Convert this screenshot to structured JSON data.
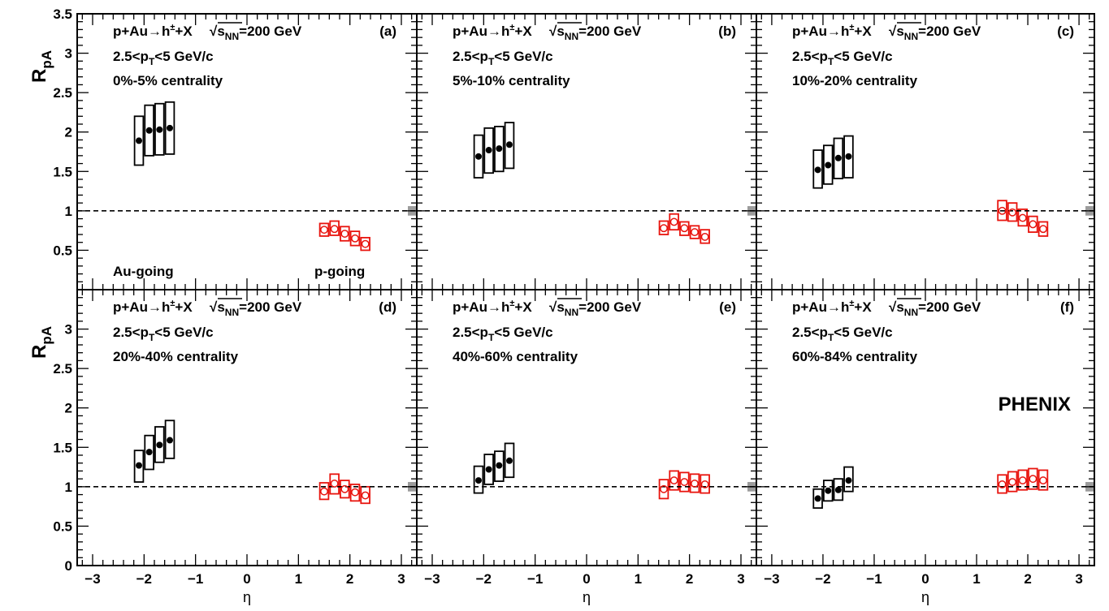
{
  "figure": {
    "ylabel": {
      "main": "R",
      "sub": "pA"
    },
    "xlabel": "η",
    "brand": "PHENIX",
    "reference_line_y": 1.0
  },
  "chart_data": [
    {
      "type": "scatter",
      "panel_label": "(a)",
      "process": "p+Au→h±+X",
      "energy": "√sNN=200 GeV",
      "pt_range": "2.5<pT<5 GeV/c",
      "centrality": "0%-5% centrality",
      "side_labels": {
        "left": "Au-going",
        "right": "p-going"
      },
      "xlim": [
        -3.3,
        3.3
      ],
      "ylim": [
        0,
        3.5
      ],
      "yticks": [
        0.5,
        1,
        1.5,
        2,
        2.5,
        3,
        3.5
      ],
      "xticks": [
        -3,
        -2,
        -1,
        0,
        1,
        2,
        3
      ],
      "norm_uncertainty": [
        0.94,
        1.06
      ],
      "series": [
        {
          "marker": "filled-circle",
          "color": "#000000",
          "x": [
            -2.1,
            -1.9,
            -1.7,
            -1.5
          ],
          "y": [
            1.89,
            2.02,
            2.03,
            2.05
          ],
          "sys_low": [
            1.58,
            1.7,
            1.71,
            1.72
          ],
          "sys_high": [
            2.2,
            2.34,
            2.36,
            2.38
          ]
        },
        {
          "marker": "open-circle",
          "color": "#e8140e",
          "x": [
            1.5,
            1.7,
            1.9,
            2.1,
            2.3
          ],
          "y": [
            0.76,
            0.77,
            0.71,
            0.65,
            0.58
          ],
          "sys_low": [
            0.68,
            0.69,
            0.62,
            0.56,
            0.5
          ],
          "sys_high": [
            0.84,
            0.87,
            0.8,
            0.74,
            0.66
          ]
        }
      ]
    },
    {
      "type": "scatter",
      "panel_label": "(b)",
      "process": "p+Au→h±+X",
      "energy": "√sNN=200 GeV",
      "pt_range": "2.5<pT<5 GeV/c",
      "centrality": "5%-10% centrality",
      "xlim": [
        -3.3,
        3.3
      ],
      "ylim": [
        0,
        3.5
      ],
      "yticks": [],
      "xticks": [
        -3,
        -2,
        -1,
        0,
        1,
        2,
        3
      ],
      "norm_uncertainty": [
        0.94,
        1.06
      ],
      "series": [
        {
          "marker": "filled-circle",
          "color": "#000000",
          "x": [
            -2.1,
            -1.9,
            -1.7,
            -1.5
          ],
          "y": [
            1.69,
            1.77,
            1.79,
            1.84
          ],
          "sys_low": [
            1.42,
            1.48,
            1.5,
            1.54
          ],
          "sys_high": [
            1.96,
            2.05,
            2.07,
            2.12
          ]
        },
        {
          "marker": "open-circle",
          "color": "#e8140e",
          "x": [
            1.5,
            1.7,
            1.9,
            2.1,
            2.3
          ],
          "y": [
            0.78,
            0.86,
            0.78,
            0.73,
            0.67
          ],
          "sys_low": [
            0.7,
            0.76,
            0.69,
            0.65,
            0.59
          ],
          "sys_high": [
            0.87,
            0.96,
            0.86,
            0.81,
            0.76
          ]
        }
      ]
    },
    {
      "type": "scatter",
      "panel_label": "(c)",
      "process": "p+Au→h±+X",
      "energy": "√sNN=200 GeV",
      "pt_range": "2.5<pT<5 GeV/c",
      "centrality": "10%-20% centrality",
      "xlim": [
        -3.3,
        3.3
      ],
      "ylim": [
        0,
        3.5
      ],
      "yticks": [],
      "xticks": [
        -3,
        -2,
        -1,
        0,
        1,
        2,
        3
      ],
      "norm_uncertainty": [
        0.94,
        1.06
      ],
      "series": [
        {
          "marker": "filled-circle",
          "color": "#000000",
          "x": [
            -2.1,
            -1.9,
            -1.7,
            -1.5
          ],
          "y": [
            1.52,
            1.58,
            1.67,
            1.69
          ],
          "sys_low": [
            1.29,
            1.34,
            1.41,
            1.42
          ],
          "sys_high": [
            1.77,
            1.83,
            1.92,
            1.95
          ]
        },
        {
          "marker": "open-circle",
          "color": "#e8140e",
          "x": [
            1.5,
            1.7,
            1.9,
            2.1,
            2.3
          ],
          "y": [
            1.0,
            0.98,
            0.91,
            0.83,
            0.77
          ],
          "sys_low": [
            0.88,
            0.87,
            0.81,
            0.73,
            0.68
          ],
          "sys_high": [
            1.13,
            1.1,
            1.02,
            0.93,
            0.86
          ]
        }
      ]
    },
    {
      "type": "scatter",
      "panel_label": "(d)",
      "process": "p+Au→h±+X",
      "energy": "√sNN=200 GeV",
      "pt_range": "2.5<pT<5 GeV/c",
      "centrality": "20%-40% centrality",
      "xlim": [
        -3.3,
        3.3
      ],
      "ylim": [
        0,
        3.5
      ],
      "yticks": [
        0,
        0.5,
        1,
        1.5,
        2,
        2.5,
        3
      ],
      "xticks": [
        -3,
        -2,
        -1,
        0,
        1,
        2,
        3
      ],
      "norm_uncertainty": [
        0.94,
        1.06
      ],
      "series": [
        {
          "marker": "filled-circle",
          "color": "#000000",
          "x": [
            -2.1,
            -1.9,
            -1.7,
            -1.5
          ],
          "y": [
            1.27,
            1.44,
            1.53,
            1.59
          ],
          "sys_low": [
            1.06,
            1.22,
            1.31,
            1.36
          ],
          "sys_high": [
            1.46,
            1.65,
            1.76,
            1.84
          ]
        },
        {
          "marker": "open-circle",
          "color": "#e8140e",
          "x": [
            1.5,
            1.7,
            1.9,
            2.1,
            2.3
          ],
          "y": [
            0.94,
            1.04,
            0.97,
            0.93,
            0.89
          ],
          "sys_low": [
            0.84,
            0.91,
            0.86,
            0.82,
            0.79
          ],
          "sys_high": [
            1.05,
            1.16,
            1.08,
            1.03,
            1.0
          ]
        }
      ]
    },
    {
      "type": "scatter",
      "panel_label": "(e)",
      "process": "p+Au→h±+X",
      "energy": "√sNN=200 GeV",
      "pt_range": "2.5<pT<5 GeV/c",
      "centrality": "40%-60% centrality",
      "xlim": [
        -3.3,
        3.3
      ],
      "ylim": [
        0,
        3.5
      ],
      "yticks": [],
      "xticks": [
        -3,
        -2,
        -1,
        0,
        1,
        2,
        3
      ],
      "norm_uncertainty": [
        0.94,
        1.06
      ],
      "series": [
        {
          "marker": "filled-circle",
          "color": "#000000",
          "x": [
            -2.1,
            -1.9,
            -1.7,
            -1.5
          ],
          "y": [
            1.08,
            1.22,
            1.27,
            1.33
          ],
          "sys_low": [
            0.92,
            1.03,
            1.07,
            1.12
          ],
          "sys_high": [
            1.26,
            1.41,
            1.45,
            1.55
          ]
        },
        {
          "marker": "open-circle",
          "color": "#e8140e",
          "x": [
            1.5,
            1.7,
            1.9,
            2.1,
            2.3
          ],
          "y": [
            0.97,
            1.08,
            1.06,
            1.04,
            1.03
          ],
          "sys_low": [
            0.85,
            0.96,
            0.94,
            0.93,
            0.92
          ],
          "sys_high": [
            1.09,
            1.2,
            1.18,
            1.16,
            1.15
          ]
        }
      ]
    },
    {
      "type": "scatter",
      "panel_label": "(f)",
      "process": "p+Au→h±+X",
      "energy": "√sNN=200 GeV",
      "pt_range": "2.5<pT<5 GeV/c",
      "centrality": "60%-84% centrality",
      "xlim": [
        -3.3,
        3.3
      ],
      "ylim": [
        0,
        3.5
      ],
      "yticks": [],
      "xticks": [
        -3,
        -2,
        -1,
        0,
        1,
        2,
        3
      ],
      "norm_uncertainty": [
        0.94,
        1.06
      ],
      "series": [
        {
          "marker": "filled-circle",
          "color": "#000000",
          "x": [
            -2.1,
            -1.9,
            -1.7,
            -1.5
          ],
          "y": [
            0.85,
            0.95,
            0.96,
            1.08
          ],
          "sys_low": [
            0.73,
            0.82,
            0.83,
            0.94
          ],
          "sys_high": [
            0.97,
            1.08,
            1.1,
            1.25
          ]
        },
        {
          "marker": "open-circle",
          "color": "#e8140e",
          "x": [
            1.5,
            1.7,
            1.9,
            2.1,
            2.3
          ],
          "y": [
            1.03,
            1.06,
            1.08,
            1.1,
            1.08
          ],
          "sys_low": [
            0.92,
            0.94,
            0.96,
            0.97,
            0.96
          ],
          "sys_high": [
            1.15,
            1.19,
            1.21,
            1.23,
            1.21
          ]
        }
      ]
    }
  ]
}
